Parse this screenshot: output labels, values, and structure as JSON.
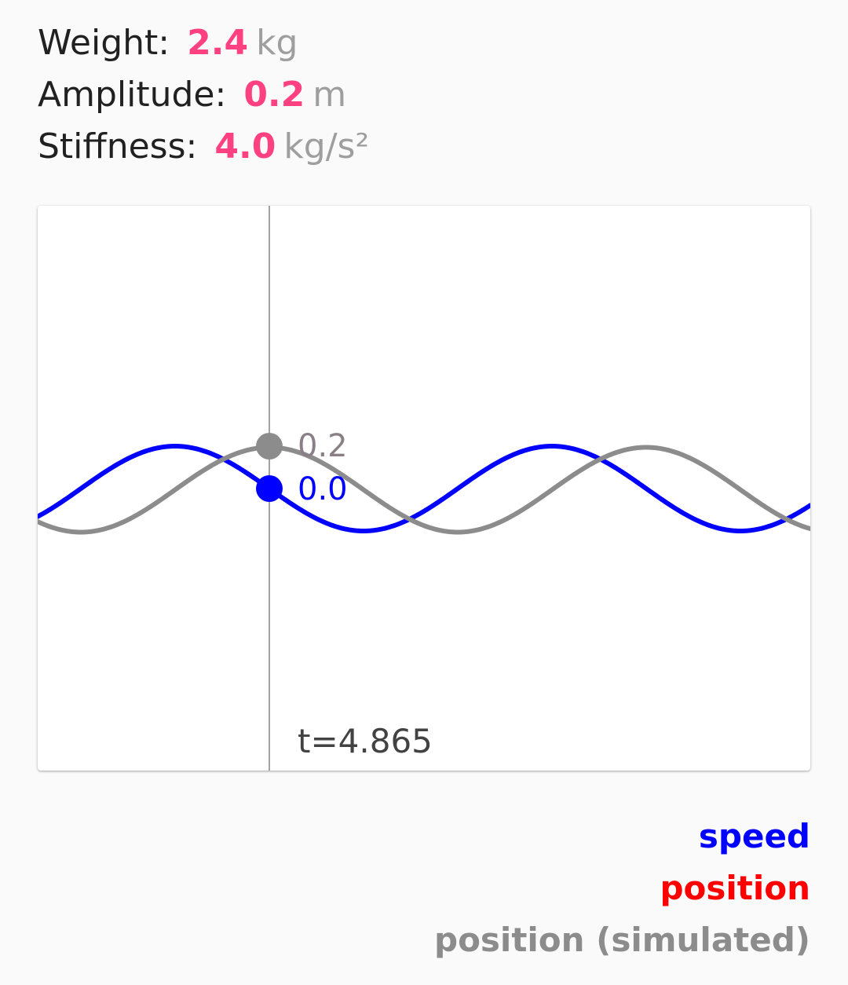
{
  "params": [
    {
      "label": "Weight:",
      "value": "2.4",
      "unit": "kg"
    },
    {
      "label": "Amplitude:",
      "value": "0.2",
      "unit": "m"
    },
    {
      "label": "Stiffness:",
      "value": "4.0",
      "unit": "kg/s²"
    }
  ],
  "colors": {
    "accent": "#ff4081",
    "speed": "#0000ff",
    "position": "#ff0000",
    "position_simulated": "#8c8c8c",
    "cursor": "#666666"
  },
  "chart_data": {
    "type": "line",
    "time": 4.865,
    "time_label": "t=4.865",
    "cursor_values": {
      "position_simulated": "0.2",
      "speed": "0.0"
    },
    "amplitude": 0.2,
    "stiffness": 4.0,
    "weight": 2.4,
    "series": [
      {
        "name": "speed",
        "color": "#0000ff"
      },
      {
        "name": "position",
        "color": "#ff0000"
      },
      {
        "name": "position (simulated)",
        "color": "#8c8c8c"
      }
    ]
  },
  "legend": {
    "speed": "speed",
    "position": "position",
    "position_simulated": "position (simulated)"
  }
}
